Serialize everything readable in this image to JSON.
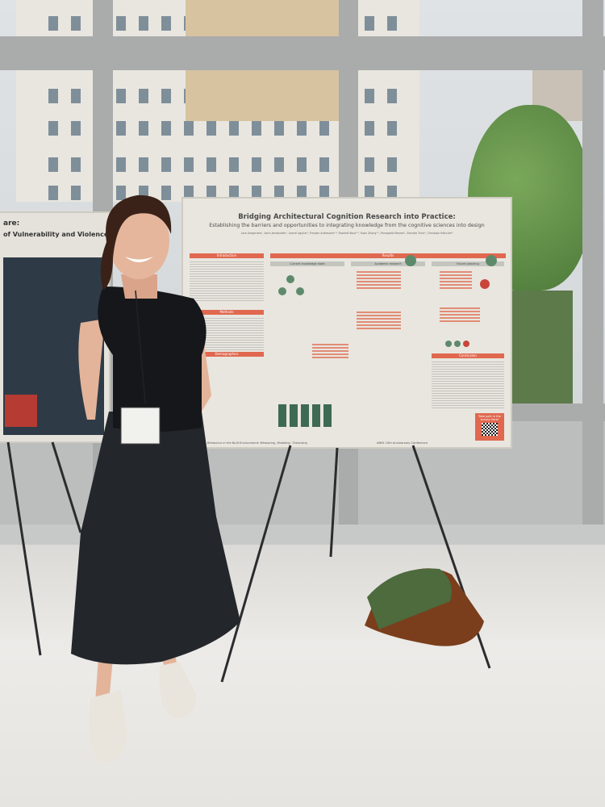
{
  "scene": {
    "colors": {
      "wall_glass": "#cfd3d4",
      "floor": "#e9e8e6",
      "poster_accent": "#e0684f",
      "poster_green": "#5e8a6c",
      "dress": "#1f2226",
      "shirt": "#15171a"
    }
  },
  "main_poster": {
    "title": "Bridging Architectural Cognition Research into Practice:",
    "subtitle": "Establishing the barriers and opportunities to integrating knowledge from the cognitive sciences into design",
    "authors": "Lara Gregorians¹, Azrin Jamaluddin², Leonel Aguilar³, Freyaan Anklesaria¹·⁴, Raphaël Baur²·³, Yuqin Zhong¹·³, Panagiotis Mavros⁵, Zdravko Trivic⁶, Christoph Hölscher³",
    "sections": {
      "introduction": "Introduction",
      "methods": "Methods",
      "demographics": "Demographics",
      "results": "Results",
      "current_knowledge": "Current knowledge state",
      "academic_research": "Academic research",
      "future_planning": "Future planning",
      "conclusion": "Conclusion"
    },
    "footer": "Behaviour in the Built Environment: Measuring, Modeling, Theorising",
    "conference": "ANFA 10th Anniversary Conference",
    "survey_cta": "Take part in the survey here!"
  },
  "left_poster": {
    "title_fragment": "are:",
    "subtitle_fragment": "of Vulnerability and Violence"
  }
}
